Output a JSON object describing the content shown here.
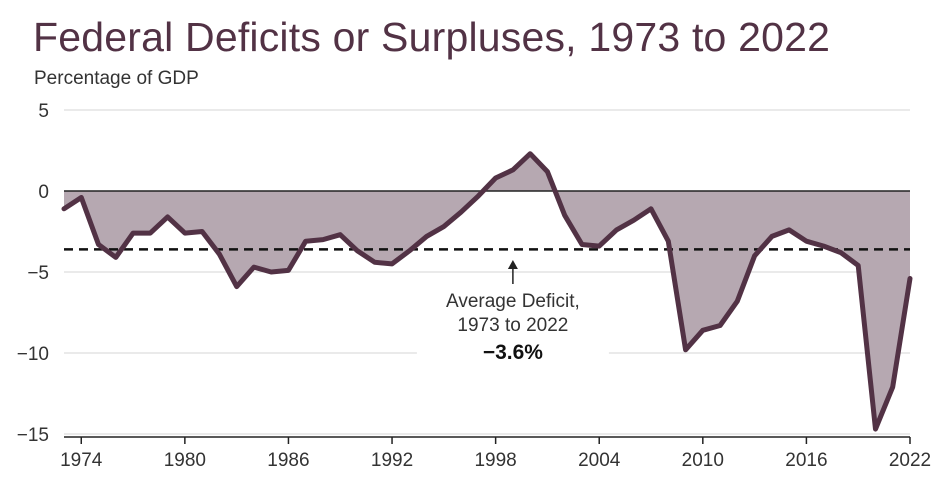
{
  "colors": {
    "series": "#523245",
    "fill": "#B6A8B1",
    "zero_line": "#222222",
    "average_line": "#111111",
    "grid": "#d4d4d4"
  },
  "chart_data": {
    "type": "area",
    "title": "Federal Deficits or Surpluses, 1973 to 2022",
    "ylabel": "Percentage of GDP",
    "xlabel": "",
    "xlim": [
      1973,
      2022
    ],
    "ylim": [
      -15,
      5
    ],
    "y_ticks": [
      5,
      0,
      -5,
      -10,
      -15
    ],
    "y_tick_labels": [
      "5",
      "0",
      "−5",
      "−10",
      "−15"
    ],
    "x_ticks": [
      1974,
      1980,
      1986,
      1992,
      1998,
      2004,
      2010,
      2016,
      2022
    ],
    "x_tick_labels": [
      "1974",
      "1980",
      "1986",
      "1992",
      "1998",
      "2004",
      "2010",
      "2016",
      "2022"
    ],
    "series": [
      {
        "name": "Federal Deficit or Surplus",
        "x": [
          1973,
          1974,
          1975,
          1976,
          1977,
          1978,
          1979,
          1980,
          1981,
          1982,
          1983,
          1984,
          1985,
          1986,
          1987,
          1988,
          1989,
          1990,
          1991,
          1992,
          1993,
          1994,
          1995,
          1996,
          1997,
          1998,
          1999,
          2000,
          2001,
          2002,
          2003,
          2004,
          2005,
          2006,
          2007,
          2008,
          2009,
          2010,
          2011,
          2012,
          2013,
          2014,
          2015,
          2016,
          2017,
          2018,
          2019,
          2020,
          2021,
          2022
        ],
        "values": [
          -1.1,
          -0.4,
          -3.3,
          -4.1,
          -2.6,
          -2.6,
          -1.6,
          -2.6,
          -2.5,
          -3.9,
          -5.9,
          -4.7,
          -5.0,
          -4.9,
          -3.1,
          -3.0,
          -2.7,
          -3.7,
          -4.4,
          -4.5,
          -3.7,
          -2.8,
          -2.2,
          -1.3,
          -0.3,
          0.8,
          1.3,
          2.3,
          1.2,
          -1.5,
          -3.3,
          -3.4,
          -2.4,
          -1.8,
          -1.1,
          -3.1,
          -9.8,
          -8.6,
          -8.3,
          -6.8,
          -4.0,
          -2.8,
          -2.4,
          -3.1,
          -3.4,
          -3.8,
          -4.6,
          -14.7,
          -12.1,
          -5.4
        ]
      }
    ],
    "reference_line": {
      "name": "Average Deficit",
      "value": -3.6
    },
    "annotation": {
      "line1": "Average Deficit,",
      "line2": "1973 to 2022",
      "value_label": "−3.6%",
      "arrow_year": 1999
    }
  }
}
